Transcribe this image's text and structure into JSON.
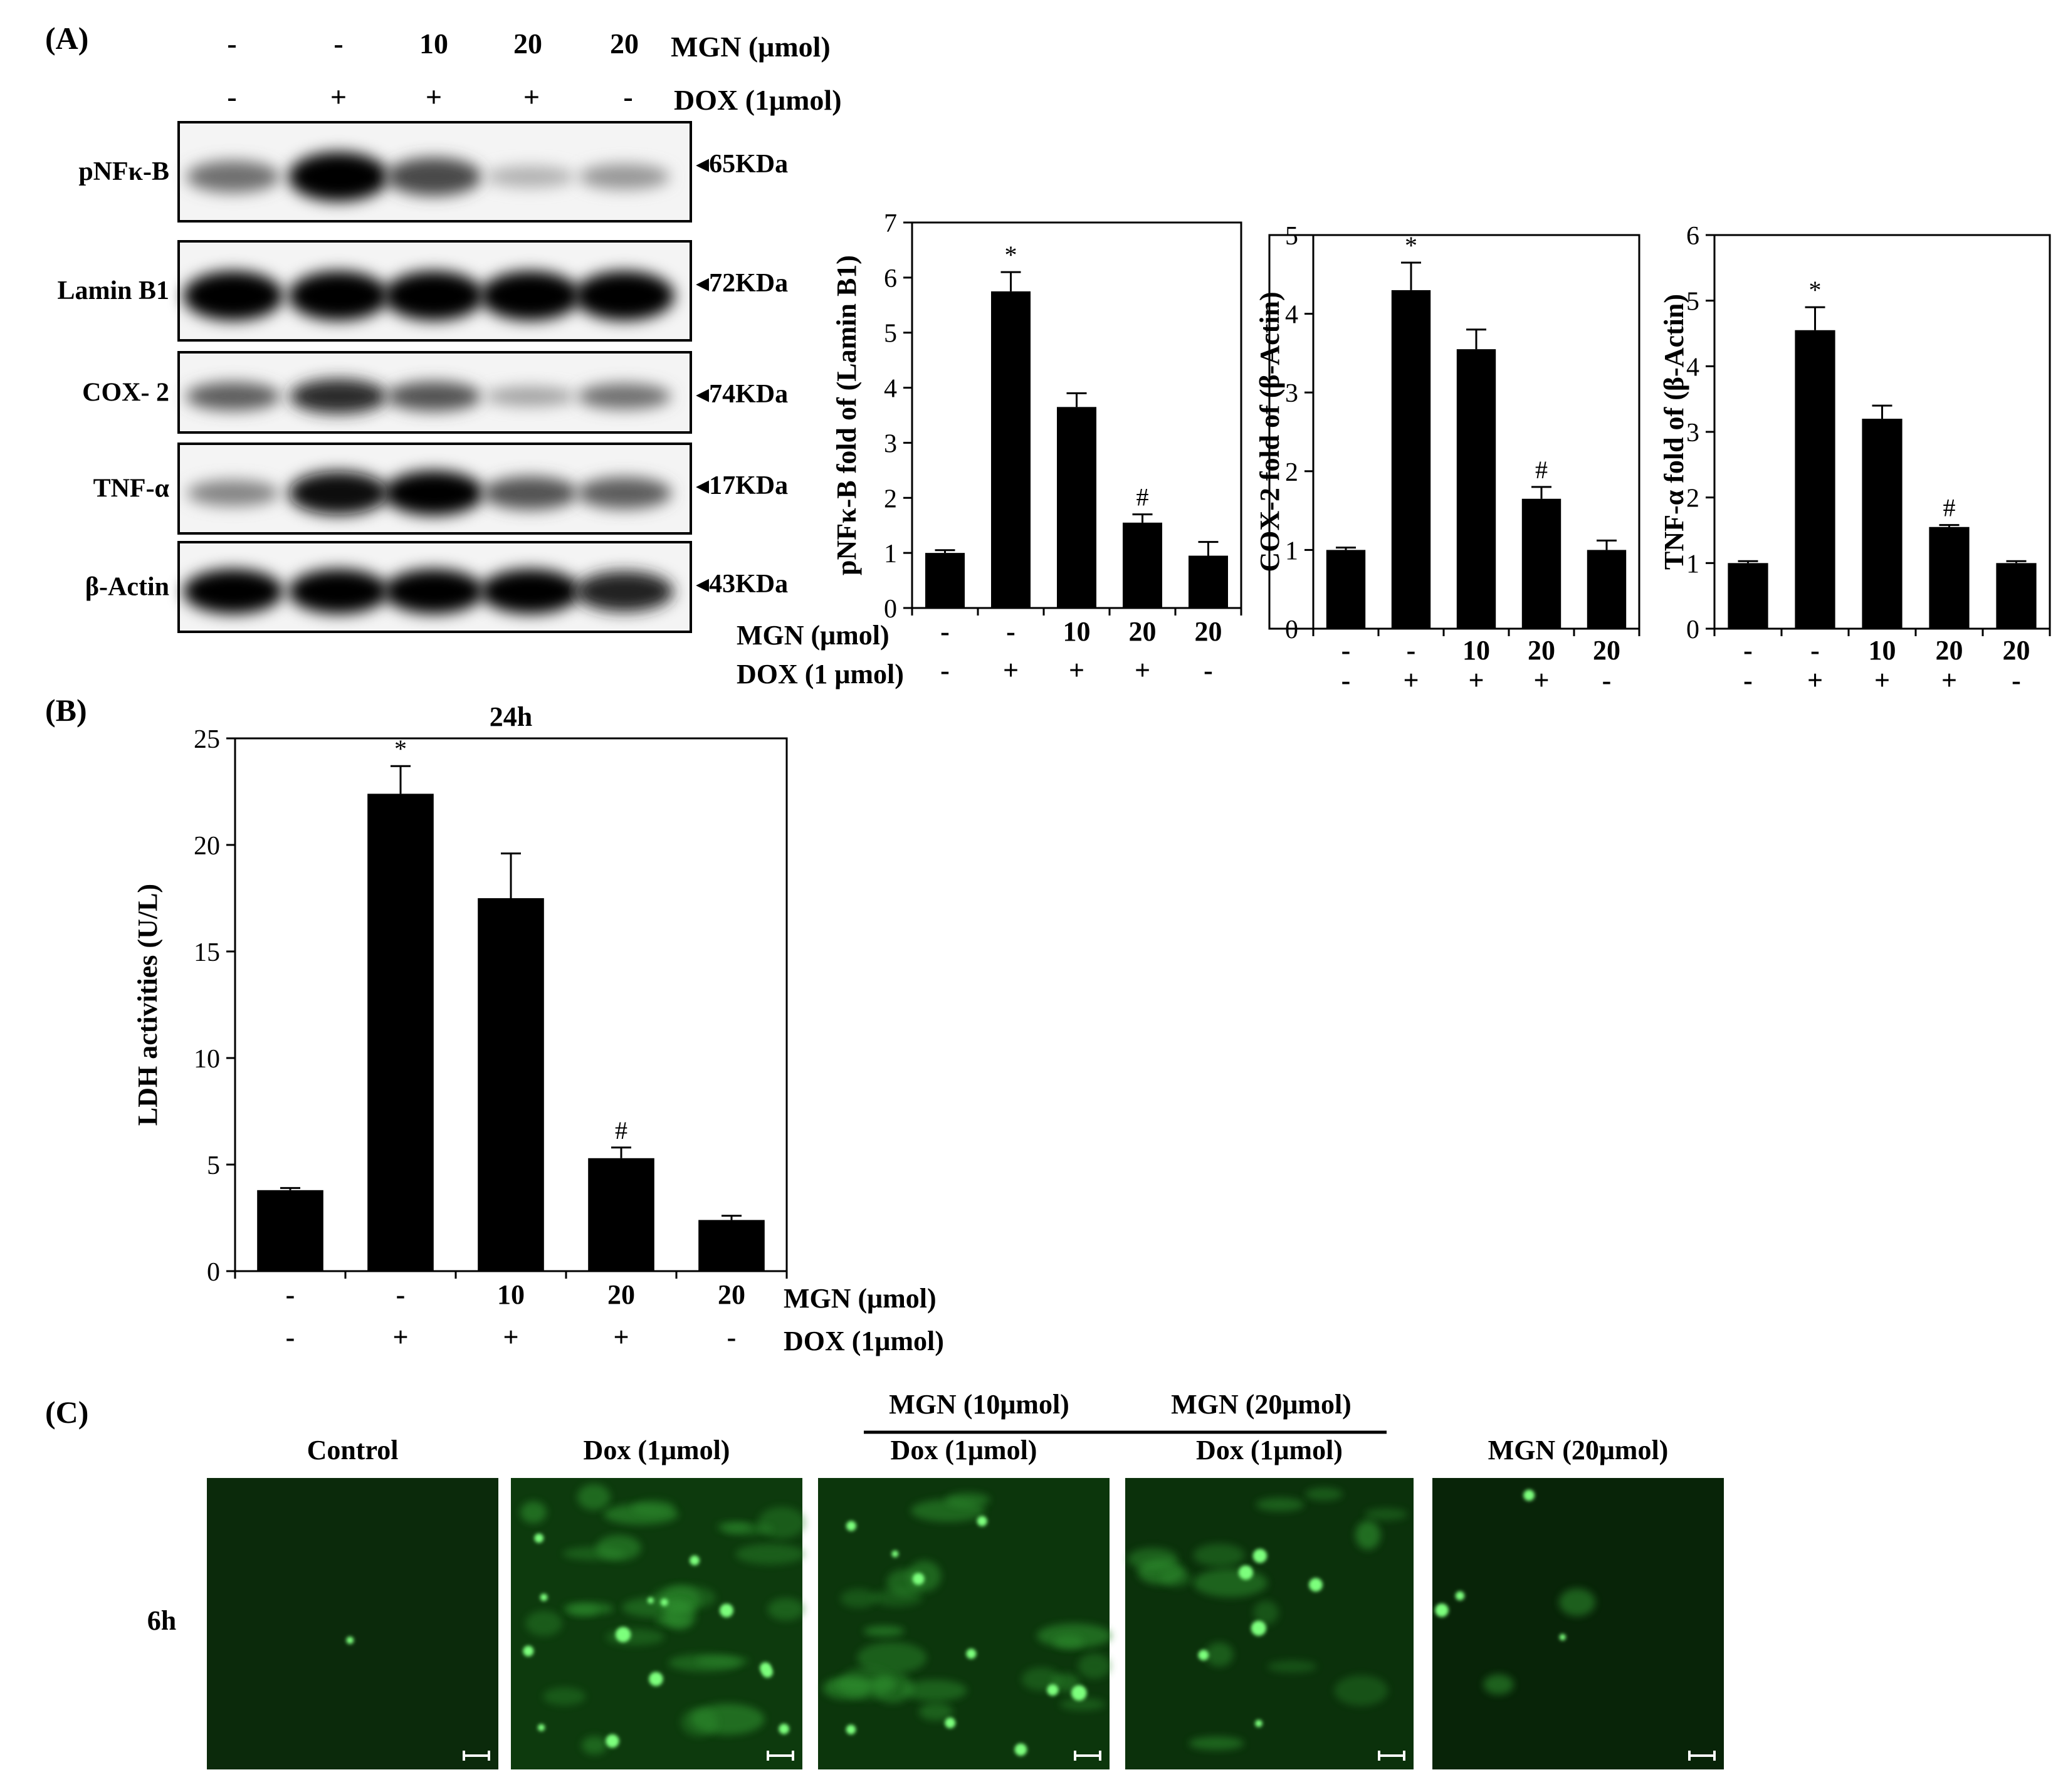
{
  "figure": {
    "panel_labels": [
      "(A)",
      "(B)",
      "(C)"
    ],
    "conditions": {
      "mgn_label": "MGN (μmol)",
      "dox_label": "DOX (1μmol)",
      "dox_label_alt": "DOX (1 μmol)",
      "mgn_values": [
        "-",
        "-",
        "10",
        "20",
        "20"
      ],
      "dox_values": [
        "-",
        "+",
        "+",
        "+",
        "-"
      ]
    },
    "significance": {
      "star": "*",
      "hash": "#"
    }
  },
  "western_blot": {
    "bands": [
      {
        "protein": "pNFκ-B",
        "size": "65KDa",
        "intensity": [
          0.45,
          1.0,
          0.65,
          0.12,
          0.25
        ]
      },
      {
        "protein": "Lamin B1",
        "size": "72KDa",
        "intensity": [
          1.0,
          1.0,
          1.0,
          1.0,
          1.0
        ]
      },
      {
        "protein": "COX- 2",
        "size": "74KDa",
        "intensity": [
          0.55,
          0.8,
          0.6,
          0.2,
          0.45
        ]
      },
      {
        "protein": "TNF-α",
        "size": "17KDa",
        "intensity": [
          0.35,
          0.95,
          1.0,
          0.6,
          0.55
        ]
      },
      {
        "protein": "β-Actin",
        "size": "43KDa",
        "intensity": [
          1.0,
          1.0,
          1.0,
          1.0,
          0.85
        ]
      }
    ]
  },
  "chart_data": [
    {
      "type": "bar",
      "panel": "A",
      "ylabel": "pNFκ-B  fold of (Lamin B1)",
      "ylim": [
        0,
        7
      ],
      "yticks": [
        0,
        1,
        2,
        3,
        4,
        5,
        6,
        7
      ],
      "categories": [
        "-/-",
        "-/+",
        "10/+",
        "20/+",
        "20/-"
      ],
      "values": [
        1.0,
        5.75,
        3.65,
        1.55,
        0.95
      ],
      "errors": [
        0.05,
        0.35,
        0.25,
        0.15,
        0.25
      ],
      "marks": [
        "",
        "*",
        "",
        "#",
        ""
      ]
    },
    {
      "type": "bar",
      "panel": "A",
      "ylabel": "COX-2 fold of (β-Actin)",
      "ylim": [
        0,
        5
      ],
      "yticks": [
        0,
        1,
        2,
        3,
        4,
        5
      ],
      "categories": [
        "-/-",
        "-/+",
        "10/+",
        "20/+",
        "20/-"
      ],
      "values": [
        1.0,
        4.3,
        3.55,
        1.65,
        1.0
      ],
      "errors": [
        0.03,
        0.35,
        0.25,
        0.15,
        0.12
      ],
      "marks": [
        "",
        "*",
        "",
        "#",
        ""
      ]
    },
    {
      "type": "bar",
      "panel": "A",
      "ylabel": "TNF-α  fold of (β-Actin)",
      "ylim": [
        0,
        6
      ],
      "yticks": [
        0,
        1,
        2,
        3,
        4,
        5,
        6
      ],
      "categories": [
        "-/-",
        "-/+",
        "10/+",
        "20/+",
        "20/-"
      ],
      "values": [
        1.0,
        4.55,
        3.2,
        1.55,
        1.0
      ],
      "errors": [
        0.03,
        0.35,
        0.2,
        0.03,
        0.03
      ],
      "marks": [
        "",
        "*",
        "",
        "#",
        ""
      ]
    },
    {
      "type": "bar",
      "panel": "B",
      "title": "24h",
      "ylabel": "LDH  activities (U/L)",
      "ylim": [
        0,
        25
      ],
      "yticks": [
        0,
        5,
        10,
        15,
        20,
        25
      ],
      "categories": [
        "-/-",
        "-/+",
        "10/+",
        "20/+",
        "20/-"
      ],
      "values": [
        3.8,
        22.4,
        17.5,
        5.3,
        2.4
      ],
      "errors": [
        0.1,
        1.3,
        2.1,
        0.5,
        0.2
      ],
      "marks": [
        "",
        "*",
        "",
        "#",
        ""
      ]
    }
  ],
  "microscopy": {
    "row_label": "6h",
    "group_labels": [
      "MGN (10μmol)",
      "MGN (20μmol)"
    ],
    "panels": [
      {
        "title": "Control",
        "dots": 1
      },
      {
        "title": "Dox (1μmol)",
        "dots": 14
      },
      {
        "title": "Dox (1μmol)",
        "dots": 10
      },
      {
        "title": "Dox (1μmol)",
        "dots": 6
      },
      {
        "title": "MGN (20μmol)",
        "dots": 4
      }
    ]
  }
}
